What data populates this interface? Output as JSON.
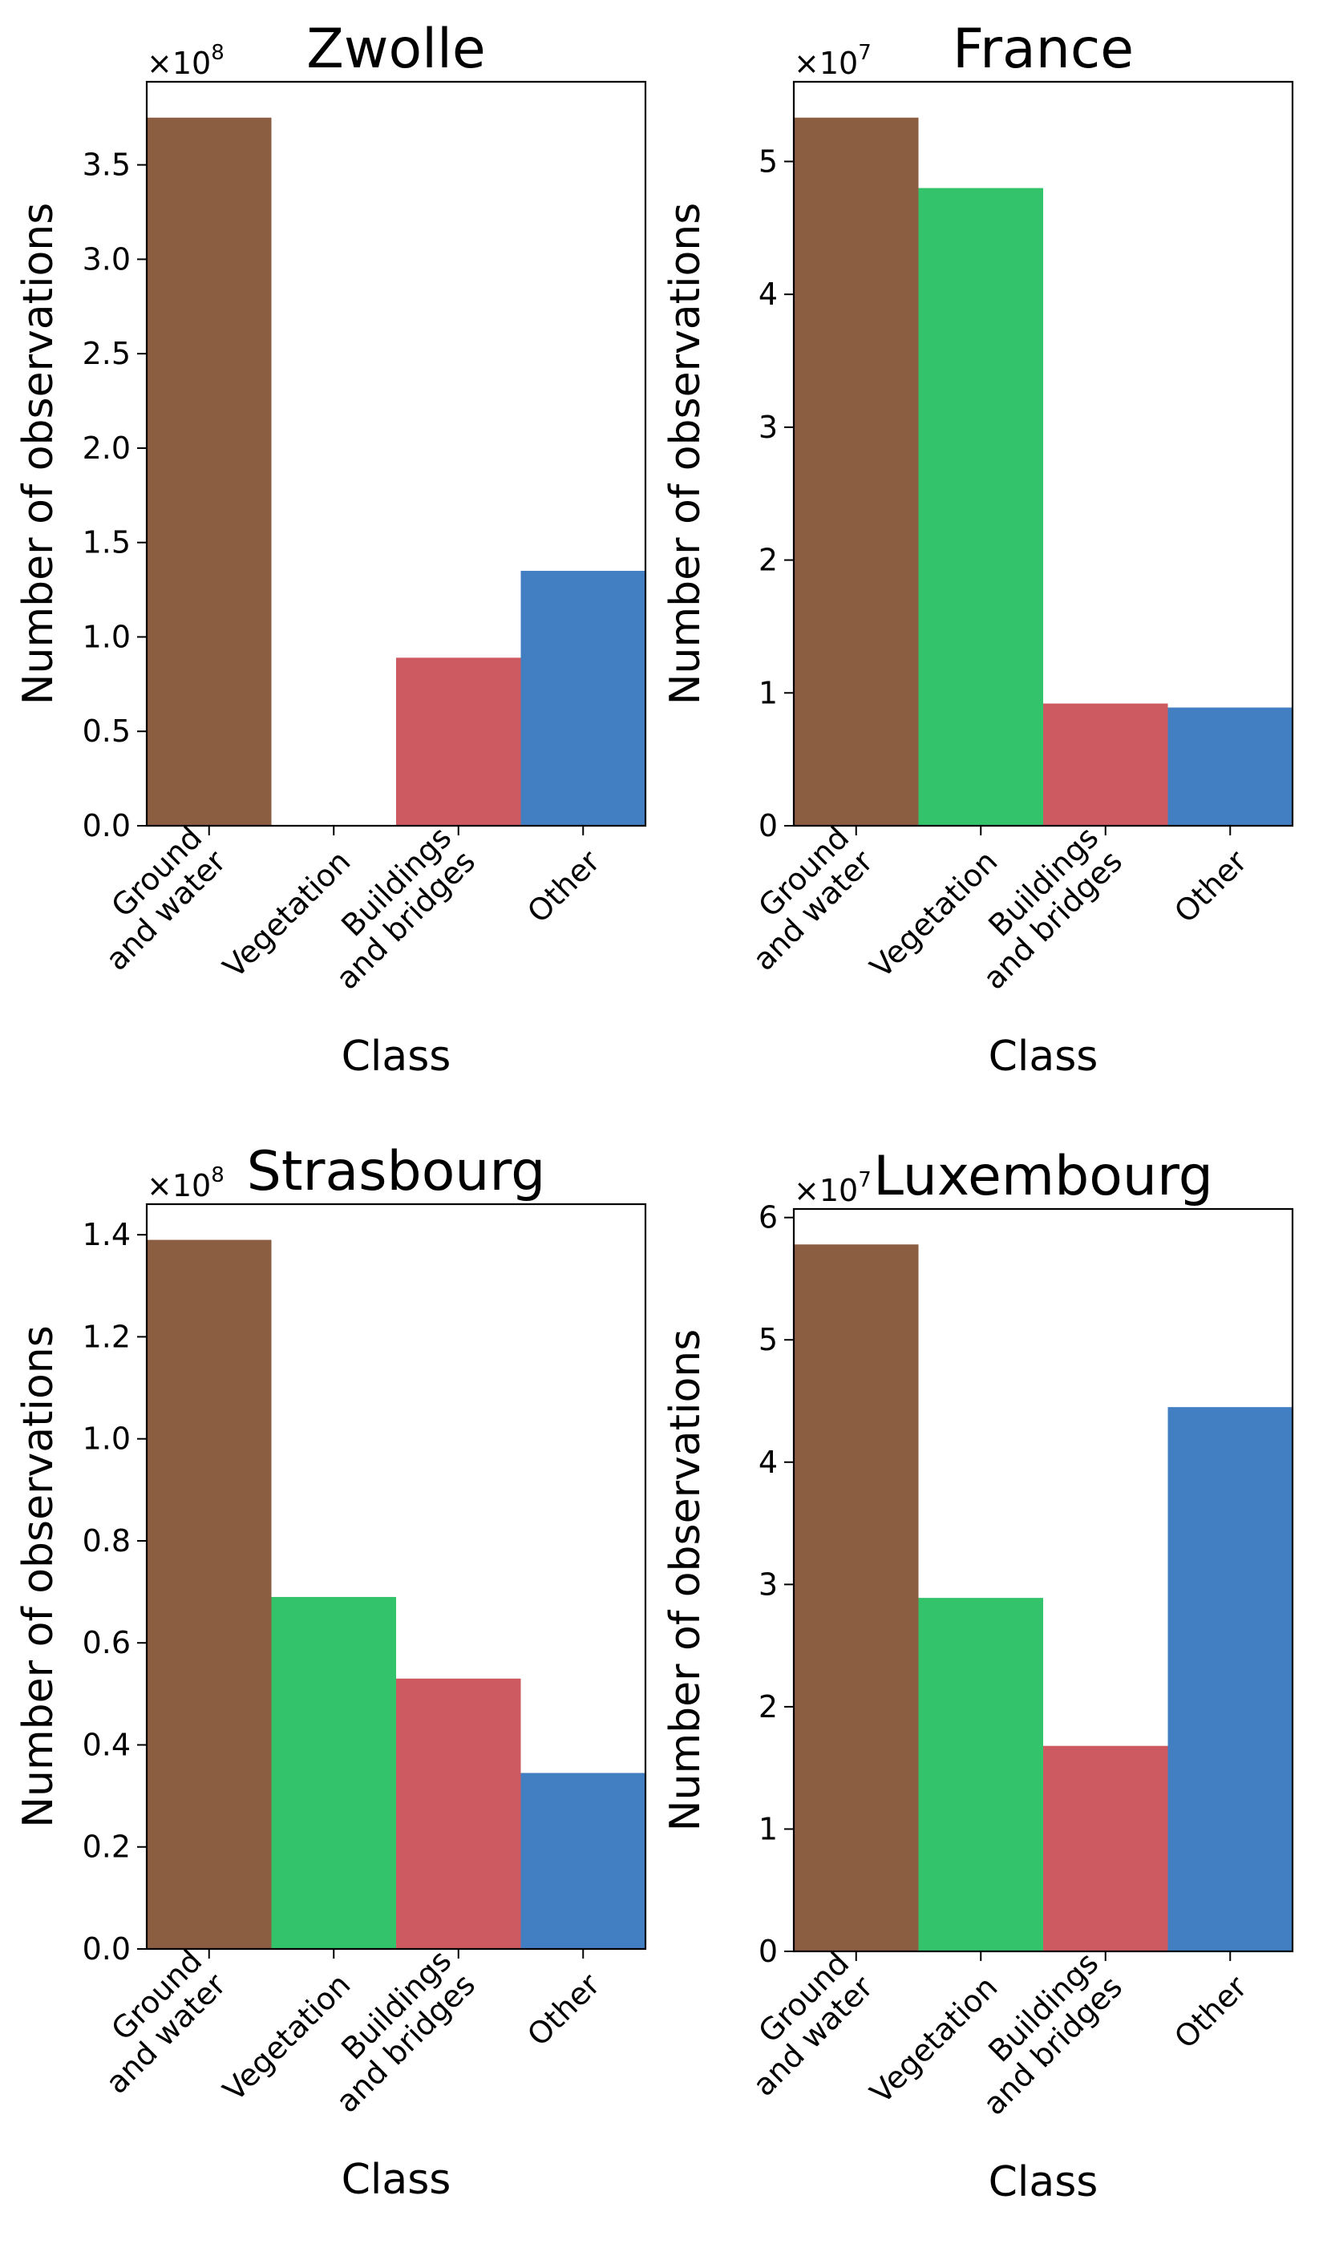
{
  "chart_data": [
    {
      "type": "bar",
      "title": "Zwolle",
      "xlabel": "Class",
      "ylabel": "Number of observations",
      "multiplier_base": "×10",
      "multiplier_exp": "8",
      "categories": [
        [
          "Ground",
          "and water"
        ],
        [
          "Vegetation"
        ],
        [
          "Buildings",
          "and bridges"
        ],
        [
          "Other"
        ]
      ],
      "values": [
        3.75,
        0.003,
        0.89,
        1.35
      ],
      "yticks": [
        0.0,
        0.5,
        1.0,
        1.5,
        2.0,
        2.5,
        3.0,
        3.5
      ],
      "ytick_labels": [
        "0.0",
        "0.5",
        "1.0",
        "1.5",
        "2.0",
        "2.5",
        "3.0",
        "3.5"
      ],
      "ylim": [
        0,
        3.94
      ],
      "colors": [
        "#8b5e42",
        "#33c36a",
        "#cd5a60",
        "#427fc2"
      ]
    },
    {
      "type": "bar",
      "title": "France",
      "xlabel": "Class",
      "ylabel": "Number of observations",
      "multiplier_base": "×10",
      "multiplier_exp": "7",
      "categories": [
        [
          "Ground",
          "and water"
        ],
        [
          "Vegetation"
        ],
        [
          "Buildings",
          "and bridges"
        ],
        [
          "Other"
        ]
      ],
      "values": [
        5.33,
        4.8,
        0.92,
        0.89
      ],
      "yticks": [
        0,
        1,
        2,
        3,
        4,
        5
      ],
      "ytick_labels": [
        "0",
        "1",
        "2",
        "3",
        "4",
        "5"
      ],
      "ylim": [
        0,
        5.6
      ],
      "colors": [
        "#8b5e42",
        "#33c36a",
        "#cd5a60",
        "#427fc2"
      ]
    },
    {
      "type": "bar",
      "title": "Strasbourg",
      "xlabel": "Class",
      "ylabel": "Number of observations",
      "multiplier_base": "×10",
      "multiplier_exp": "8",
      "categories": [
        [
          "Ground",
          "and water"
        ],
        [
          "Vegetation"
        ],
        [
          "Buildings",
          "and bridges"
        ],
        [
          "Other"
        ]
      ],
      "values": [
        1.39,
        0.69,
        0.53,
        0.345
      ],
      "yticks": [
        0.0,
        0.2,
        0.4,
        0.6,
        0.8,
        1.0,
        1.2,
        1.4
      ],
      "ytick_labels": [
        "0.0",
        "0.2",
        "0.4",
        "0.6",
        "0.8",
        "1.0",
        "1.2",
        "1.4"
      ],
      "ylim": [
        0,
        1.46
      ],
      "colors": [
        "#8b5e42",
        "#33c36a",
        "#cd5a60",
        "#427fc2"
      ]
    },
    {
      "type": "bar",
      "title": "Luxembourg",
      "xlabel": "Class",
      "ylabel": "Number of observations",
      "multiplier_base": "×10",
      "multiplier_exp": "7",
      "categories": [
        [
          "Ground",
          "and water"
        ],
        [
          "Vegetation"
        ],
        [
          "Buildings",
          "and bridges"
        ],
        [
          "Other"
        ]
      ],
      "values": [
        5.78,
        2.89,
        1.68,
        4.45
      ],
      "yticks": [
        0,
        1,
        2,
        3,
        4,
        5,
        6
      ],
      "ytick_labels": [
        "0",
        "1",
        "2",
        "3",
        "4",
        "5",
        "6"
      ],
      "ylim": [
        0,
        6.07
      ],
      "colors": [
        "#8b5e42",
        "#33c36a",
        "#cd5a60",
        "#427fc2"
      ]
    }
  ]
}
